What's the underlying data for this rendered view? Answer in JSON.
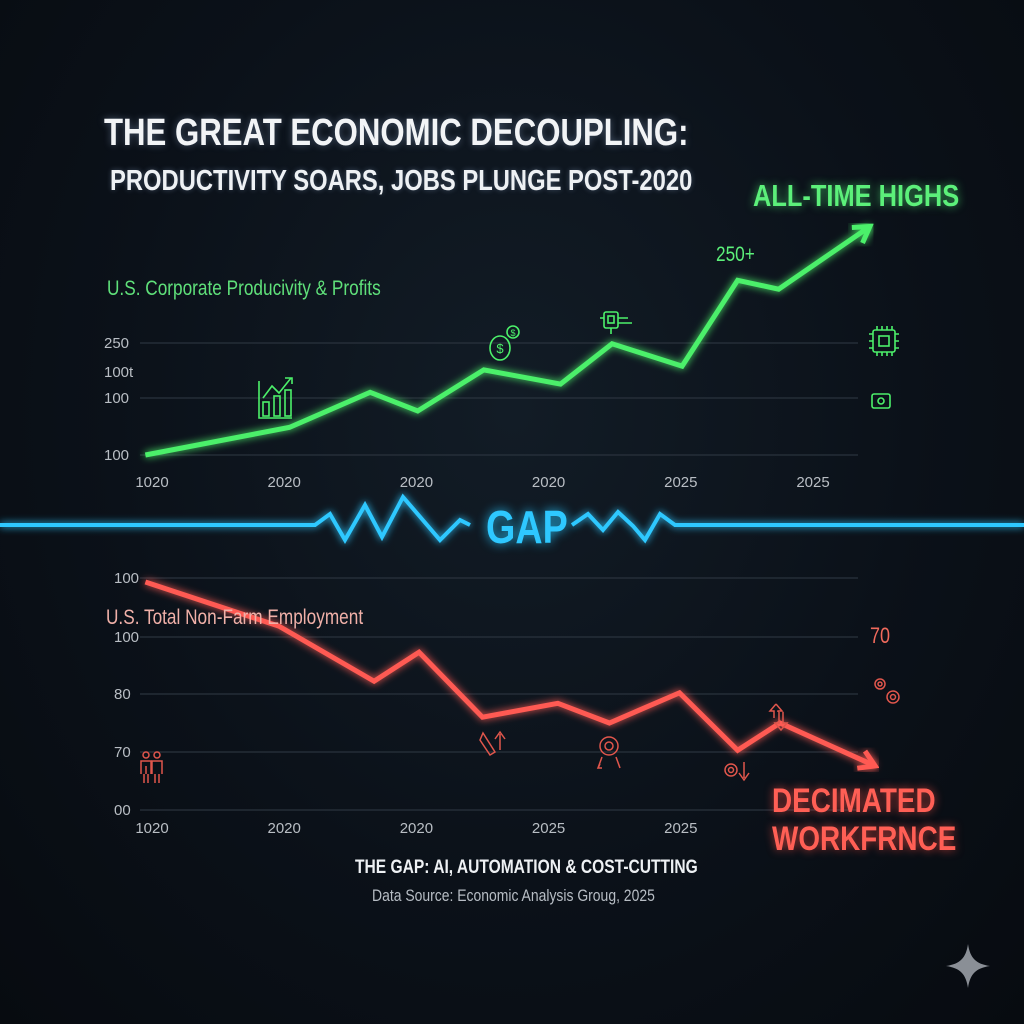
{
  "header": {
    "title": "THE GREAT ECONOMIC DECOUPLING:",
    "subtitle": "PRODUCTIVITY SOARS, JOBS PLUNGE POST-2020"
  },
  "gap_label": "GAP",
  "footer": {
    "title": "THE GAP: AI, AUTOMATION & COST-CUTTING",
    "source": "Data Source: Economic Analysis Groug, 2025"
  },
  "colors": {
    "background": "#0b1119",
    "productivity": "#4cf06a",
    "employment": "#ff5a52",
    "gap": "#2ec8ff"
  },
  "chart_data": [
    {
      "type": "line",
      "series_label": "U.S. Corporate Producivity & Profits",
      "y_tick_labels": [
        "250",
        "100t",
        "100",
        "100"
      ],
      "x_tick_labels": [
        "1020",
        "2020",
        "2020",
        "2020",
        "2025",
        "2025"
      ],
      "annotation": "ALL-TIME HIGHS",
      "value_label": "250+",
      "grid": true,
      "trend": "up",
      "x": [
        -0.05,
        1.04,
        1.65,
        2.01,
        2.51,
        3.09,
        3.48,
        4.01,
        4.43,
        4.74,
        5.43
      ],
      "y": [
        100,
        137,
        184,
        159,
        214,
        195,
        249,
        219,
        334,
        322,
        406
      ],
      "icons": [
        "bar-chart-growth-icon",
        "money-bag-icon",
        "robot-arm-icon",
        "microchip-icon",
        "camera-icon"
      ]
    },
    {
      "type": "line",
      "series_label": "U.S. Total Non-Farm Employment",
      "y_tick_labels": [
        "100",
        "100",
        "80",
        "70",
        "00"
      ],
      "x_tick_labels": [
        "1020",
        "2020",
        "2020",
        "2025",
        "2025"
      ],
      "annotation": "DECIMATED WORKFRNCE",
      "annotation_lines": [
        "DECIMATED",
        "WORKFRNCE"
      ],
      "value_label": "70",
      "grid": true,
      "trend": "down",
      "x": [
        -0.05,
        0.96,
        1.68,
        2.02,
        2.5,
        3.07,
        3.46,
        3.99,
        4.43,
        4.75,
        5.47
      ],
      "y": [
        99.3,
        91.7,
        82.2,
        87.2,
        76.0,
        78.4,
        75.0,
        80.2,
        70.3,
        75.0,
        67.6
      ],
      "icons": [
        "workers-icon",
        "robot-arm-up-icon",
        "gear-down-icon",
        "gear-down-arrow-icon",
        "up-down-arrows-icon",
        "gears-icon"
      ]
    }
  ]
}
